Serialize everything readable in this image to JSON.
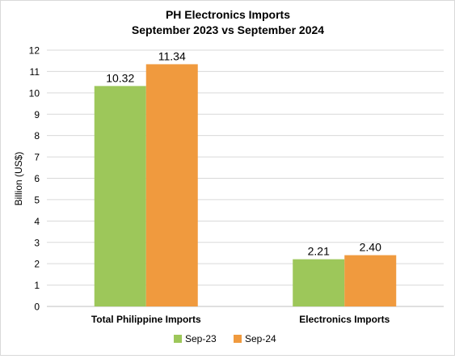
{
  "chart_data": {
    "type": "bar",
    "title_line1": "PH Electronics Imports",
    "title_line2": "September 2023 vs September 2024",
    "xlabel": "",
    "ylabel": "Billion (US$)",
    "categories": [
      "Total Philippine Imports",
      "Electronics Imports"
    ],
    "series": [
      {
        "name": "Sep-23",
        "color": "#9dc75a",
        "values": [
          10.32,
          2.21
        ],
        "labels": [
          "10.32",
          "2.21"
        ]
      },
      {
        "name": "Sep-24",
        "color": "#f09a3e",
        "values": [
          11.34,
          2.4
        ],
        "labels": [
          "11.34",
          "2.40"
        ]
      }
    ],
    "ylim": [
      0,
      12
    ],
    "yticks": [
      "0",
      "1",
      "2",
      "3",
      "4",
      "5",
      "6",
      "7",
      "8",
      "9",
      "10",
      "11",
      "12"
    ],
    "grid": true,
    "legend_position": "bottom"
  }
}
